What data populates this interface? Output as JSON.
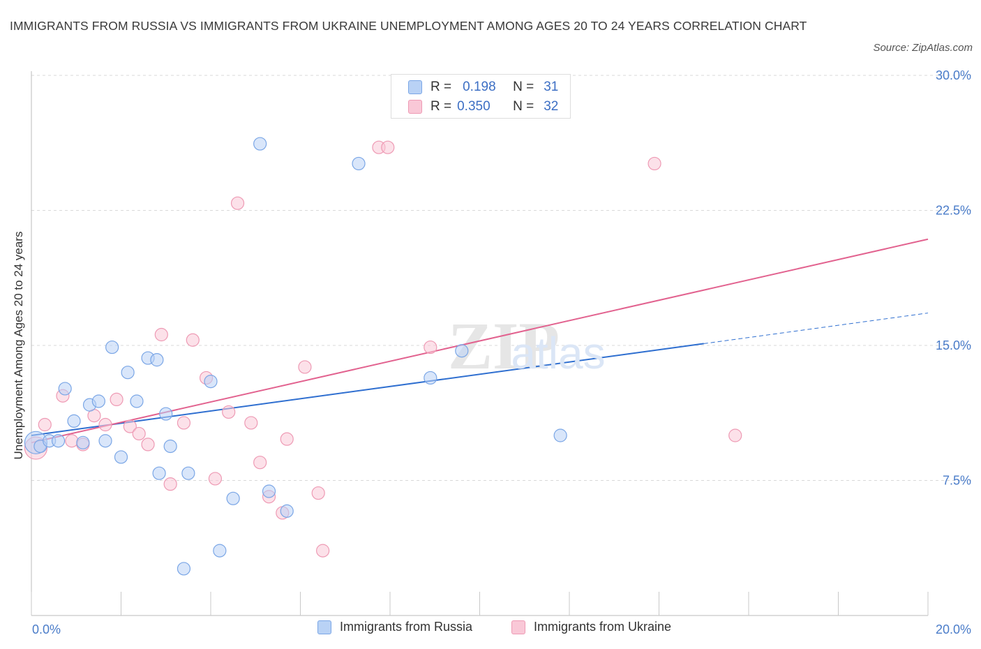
{
  "title": "IMMIGRANTS FROM RUSSIA VS IMMIGRANTS FROM UKRAINE UNEMPLOYMENT AMONG AGES 20 TO 24 YEARS CORRELATION CHART",
  "source": "Source: ZipAtlas.com",
  "watermark": "ZIPatlas",
  "legend_stats": [
    {
      "r_label": "R =",
      "r_value": "0.198",
      "n_label": "N =",
      "n_value": "31"
    },
    {
      "r_label": "R =",
      "r_value": "0.350",
      "n_label": "N =",
      "n_value": "32"
    }
  ],
  "colors": {
    "russia_fill": "#b9d2f5",
    "russia_stroke": "#7aa6e6",
    "russia_line": "#2f6fd0",
    "ukraine_fill": "#f9c8d7",
    "ukraine_stroke": "#ee9ab4",
    "ukraine_line": "#e2628f",
    "grid": "#d9d9d9",
    "tick_text": "#4a7cc9"
  },
  "chart_data": {
    "type": "scatter",
    "title": "IMMIGRANTS FROM RUSSIA VS IMMIGRANTS FROM UKRAINE UNEMPLOYMENT AMONG AGES 20 TO 24 YEARS CORRELATION CHART",
    "xlabel": "",
    "ylabel": "Unemployment Among Ages 20 to 24 years",
    "xlim": [
      0,
      20
    ],
    "ylim": [
      0,
      30
    ],
    "x_tick_labels": [
      "0.0%",
      "20.0%"
    ],
    "y_tick_labels": [
      "7.5%",
      "15.0%",
      "22.5%",
      "30.0%"
    ],
    "y_ticks": [
      7.5,
      15,
      22.5,
      30
    ],
    "grid": true,
    "legend_position": "bottom",
    "series": [
      {
        "name": "Immigrants from Russia",
        "r": 0.198,
        "n": 31,
        "trend": {
          "x0": 0,
          "y0": 10.0,
          "x1": 15.0,
          "y1": 15.1,
          "dash_to_x": 20,
          "dash_to_y": 16.8
        },
        "points": [
          {
            "x": 0.1,
            "y": 9.6
          },
          {
            "x": 0.2,
            "y": 9.4
          },
          {
            "x": 0.4,
            "y": 9.7
          },
          {
            "x": 0.6,
            "y": 9.7
          },
          {
            "x": 0.75,
            "y": 12.6
          },
          {
            "x": 0.95,
            "y": 10.8
          },
          {
            "x": 1.15,
            "y": 9.6
          },
          {
            "x": 1.3,
            "y": 11.7
          },
          {
            "x": 1.5,
            "y": 11.9
          },
          {
            "x": 1.65,
            "y": 9.7
          },
          {
            "x": 1.8,
            "y": 14.9
          },
          {
            "x": 2.0,
            "y": 8.8
          },
          {
            "x": 2.15,
            "y": 13.5
          },
          {
            "x": 2.35,
            "y": 11.9
          },
          {
            "x": 2.6,
            "y": 14.3
          },
          {
            "x": 2.8,
            "y": 14.2
          },
          {
            "x": 2.85,
            "y": 7.9
          },
          {
            "x": 3.0,
            "y": 11.2
          },
          {
            "x": 3.1,
            "y": 9.4
          },
          {
            "x": 3.4,
            "y": 2.6
          },
          {
            "x": 3.5,
            "y": 7.9
          },
          {
            "x": 4.0,
            "y": 13.0
          },
          {
            "x": 4.2,
            "y": 3.6
          },
          {
            "x": 4.5,
            "y": 6.5
          },
          {
            "x": 5.1,
            "y": 26.2
          },
          {
            "x": 5.3,
            "y": 6.9
          },
          {
            "x": 5.7,
            "y": 5.8
          },
          {
            "x": 7.3,
            "y": 25.1
          },
          {
            "x": 8.9,
            "y": 13.2
          },
          {
            "x": 9.6,
            "y": 14.7
          },
          {
            "x": 11.8,
            "y": 10.0
          }
        ]
      },
      {
        "name": "Immigrants from Ukraine",
        "r": 0.35,
        "n": 32,
        "trend": {
          "x0": 0,
          "y0": 9.6,
          "x1": 20,
          "y1": 20.9
        },
        "points": [
          {
            "x": 0.1,
            "y": 9.3
          },
          {
            "x": 0.3,
            "y": 10.6
          },
          {
            "x": 0.7,
            "y": 12.2
          },
          {
            "x": 0.9,
            "y": 9.7
          },
          {
            "x": 1.15,
            "y": 9.5
          },
          {
            "x": 1.4,
            "y": 11.1
          },
          {
            "x": 1.65,
            "y": 10.6
          },
          {
            "x": 1.9,
            "y": 12.0
          },
          {
            "x": 2.2,
            "y": 10.5
          },
          {
            "x": 2.4,
            "y": 10.1
          },
          {
            "x": 2.6,
            "y": 9.5
          },
          {
            "x": 2.9,
            "y": 15.6
          },
          {
            "x": 3.1,
            "y": 7.3
          },
          {
            "x": 3.4,
            "y": 10.7
          },
          {
            "x": 3.6,
            "y": 15.3
          },
          {
            "x": 3.9,
            "y": 13.2
          },
          {
            "x": 4.1,
            "y": 7.6
          },
          {
            "x": 4.4,
            "y": 11.3
          },
          {
            "x": 4.6,
            "y": 22.9
          },
          {
            "x": 4.9,
            "y": 10.7
          },
          {
            "x": 5.1,
            "y": 8.5
          },
          {
            "x": 5.3,
            "y": 6.6
          },
          {
            "x": 5.6,
            "y": 5.7
          },
          {
            "x": 5.7,
            "y": 9.8
          },
          {
            "x": 6.1,
            "y": 13.8
          },
          {
            "x": 6.4,
            "y": 6.8
          },
          {
            "x": 6.5,
            "y": 3.6
          },
          {
            "x": 7.75,
            "y": 26.0
          },
          {
            "x": 7.95,
            "y": 26.0
          },
          {
            "x": 8.9,
            "y": 14.9
          },
          {
            "x": 13.9,
            "y": 25.1
          },
          {
            "x": 15.7,
            "y": 10.0
          }
        ]
      }
    ]
  }
}
